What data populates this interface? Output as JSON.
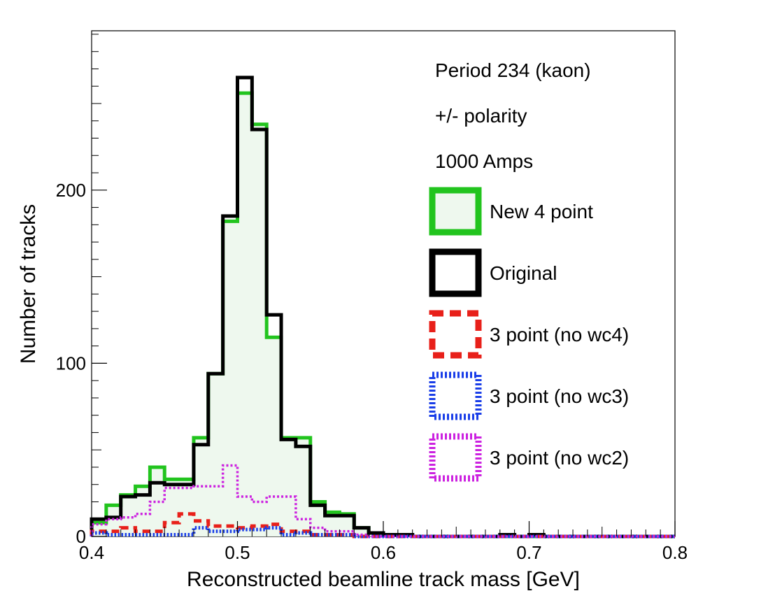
{
  "chart_data": {
    "type": "histogram",
    "xlabel": "Reconstructed beamline track mass [GeV]",
    "ylabel": "Number of tracks",
    "xlim": [
      0.4,
      0.8
    ],
    "ylim": [
      0,
      292
    ],
    "x_ticks": [
      "0.4",
      "0.5",
      "0.6",
      "0.7",
      "0.8"
    ],
    "y_ticks": [
      "0",
      "100",
      "200"
    ],
    "bin_edges": [
      0.4,
      0.41,
      0.42,
      0.43,
      0.44,
      0.45,
      0.46,
      0.47,
      0.48,
      0.49,
      0.5,
      0.51,
      0.52,
      0.53,
      0.54,
      0.55,
      0.56,
      0.57,
      0.58,
      0.59,
      0.6,
      0.61,
      0.62,
      0.63,
      0.64,
      0.65,
      0.66,
      0.67,
      0.68,
      0.69,
      0.7,
      0.71,
      0.72,
      0.73,
      0.74,
      0.75,
      0.76,
      0.77,
      0.78,
      0.79,
      0.8
    ],
    "annotations": [
      "Period 234 (kaon)",
      "+/- polarity",
      "1000 Amps"
    ],
    "legend_position": "right",
    "grid": false,
    "series": [
      {
        "name": "New 4 point",
        "color": "#22c41e",
        "style": "solid-filled",
        "fill": "#eef8ee",
        "values": [
          8,
          18,
          24,
          29,
          40,
          33,
          33,
          57,
          94,
          182,
          256,
          238,
          115,
          57,
          57,
          20,
          14,
          13,
          5,
          2,
          1,
          1,
          0,
          0,
          0,
          0,
          0,
          0,
          0,
          0,
          0,
          0,
          0,
          0,
          0,
          0,
          0,
          0,
          0,
          0
        ]
      },
      {
        "name": "Original",
        "color": "#000000",
        "style": "solid",
        "values": [
          10,
          11,
          23,
          24,
          31,
          30,
          30,
          53,
          94,
          185,
          265,
          235,
          128,
          56,
          52,
          18,
          12,
          12,
          5,
          2,
          1,
          1,
          0,
          0,
          0,
          0,
          0,
          0,
          1,
          0,
          1,
          0,
          0,
          0,
          0,
          0,
          0,
          0,
          0,
          0
        ]
      },
      {
        "name": "3 point (no wc4)",
        "color": "#e8201a",
        "style": "dashed",
        "values": [
          3,
          3,
          5,
          3,
          3,
          8,
          13,
          9,
          6,
          6,
          5,
          6,
          7,
          3,
          3,
          1,
          1,
          1,
          0,
          0,
          0,
          0,
          0,
          0,
          0,
          0,
          0,
          0,
          0,
          0,
          0,
          0,
          0,
          0,
          0,
          0,
          0,
          0,
          0,
          0
        ]
      },
      {
        "name": "3 point (no wc3)",
        "color": "#1a3ee8",
        "style": "dotted",
        "values": [
          2,
          1,
          1,
          1,
          1,
          1,
          1,
          5,
          3,
          3,
          4,
          4,
          5,
          1,
          2,
          1,
          1,
          1,
          0,
          0,
          0,
          0,
          0,
          0,
          0,
          0,
          0,
          0,
          0,
          0,
          0,
          0,
          0,
          0,
          0,
          0,
          0,
          0,
          0,
          0
        ]
      },
      {
        "name": "3 point (no wc2)",
        "color": "#cc22e0",
        "style": "dotted-fine",
        "values": [
          7,
          10,
          11,
          13,
          20,
          28,
          28,
          29,
          29,
          41,
          23,
          20,
          23,
          23,
          10,
          5,
          3,
          3,
          1,
          0,
          0,
          0,
          0,
          0,
          0,
          0,
          0,
          0,
          0,
          0,
          0,
          0,
          0,
          0,
          0,
          0,
          0,
          0,
          0,
          0
        ]
      }
    ]
  }
}
